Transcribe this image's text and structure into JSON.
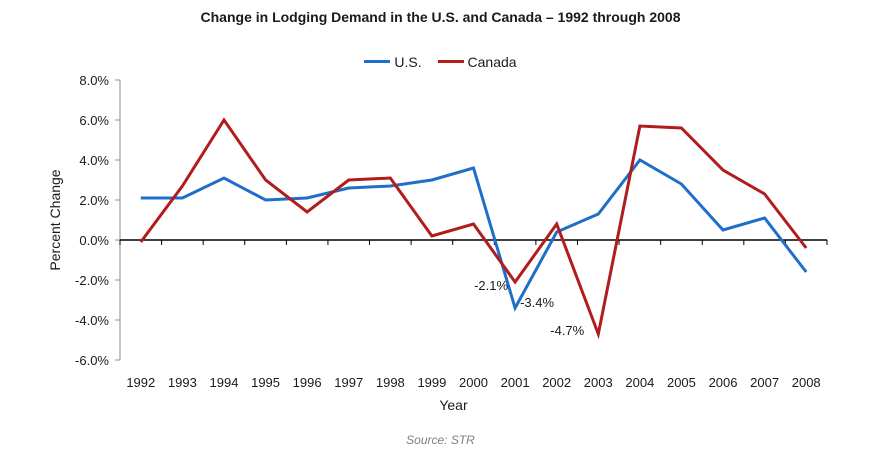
{
  "chart_data": {
    "type": "line",
    "title": "Change in Lodging Demand in the U.S. and Canada – 1992 through 2008",
    "xlabel": "Year",
    "ylabel": "Percent Change",
    "categories": [
      "1992",
      "1993",
      "1994",
      "1995",
      "1996",
      "1997",
      "1998",
      "1999",
      "2000",
      "2001",
      "2002",
      "2003",
      "2004",
      "2005",
      "2006",
      "2007",
      "2008"
    ],
    "series": [
      {
        "name": "U.S.",
        "color": "#1f6fc9",
        "values": [
          2.1,
          2.1,
          3.1,
          2.0,
          2.1,
          2.6,
          2.7,
          3.0,
          3.6,
          -3.4,
          0.4,
          1.3,
          4.0,
          2.8,
          0.5,
          1.1,
          -1.6
        ]
      },
      {
        "name": "Canada",
        "color": "#b11c1c",
        "values": [
          -0.1,
          2.7,
          6.0,
          3.0,
          1.4,
          3.0,
          3.1,
          0.2,
          0.8,
          -2.1,
          0.8,
          -4.7,
          5.7,
          5.6,
          3.5,
          2.3,
          -0.4
        ]
      }
    ],
    "ylim": [
      -6.0,
      8.0
    ],
    "yticks": [
      -6.0,
      -4.0,
      -2.0,
      0.0,
      2.0,
      4.0,
      6.0,
      8.0
    ],
    "ytick_labels": [
      "-6.0%",
      "-4.0%",
      "-2.0%",
      "0.0%",
      "2.0%",
      "4.0%",
      "6.0%",
      "8.0%"
    ],
    "legend_position": "top-center",
    "grid": false,
    "annotations": [
      {
        "text": "-2.1%",
        "category": "2001",
        "value": -2.1
      },
      {
        "text": "-3.4%",
        "category": "2001",
        "value": -3.4
      },
      {
        "text": "-4.7%",
        "category": "2003",
        "value": -4.7
      }
    ]
  },
  "source": "Source: STR"
}
